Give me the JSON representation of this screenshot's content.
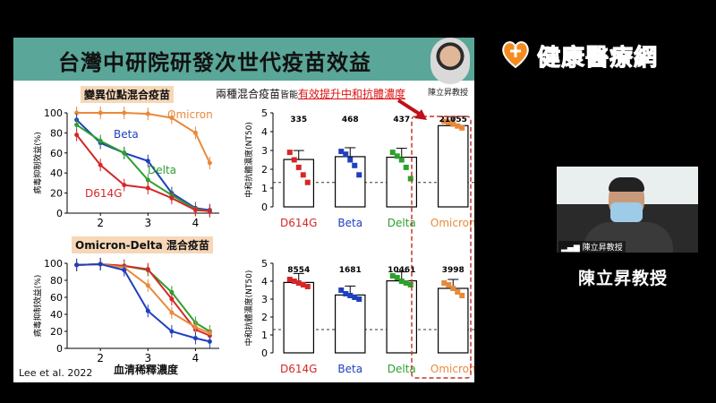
{
  "slide": {
    "title": "台灣中研院研發次世代疫苗效益",
    "portrait_label": "陳立昇教授",
    "caption_prefix": "兩種混合疫苗",
    "caption_mid": "皆能",
    "caption_highlight": "有效提升中和抗體濃度",
    "citation": "Lee et al. 2022",
    "xlabel_bottom": "血清稀釋濃度"
  },
  "colors": {
    "title_bg": "#5aa698",
    "d614g": "#d62728",
    "beta": "#1f3fbf",
    "delta": "#2ca02c",
    "omicron": "#e8893a",
    "box_dash": "#c0392b"
  },
  "brand": {
    "name": "健康醫療網",
    "icon": "heart-logo-icon"
  },
  "webcam": {
    "label": "陳立昇教授"
  },
  "speaker_name": "陳立昇教授",
  "chart_data": [
    {
      "type": "line",
      "title": "變異位點混合疫苗",
      "ylabel": "病毒抑制效益(%)",
      "xlabel": "",
      "x": [
        1.5,
        2,
        2.5,
        3,
        3.5,
        4,
        4.3
      ],
      "xticks": [
        2,
        3,
        4
      ],
      "yticks": [
        0,
        20,
        40,
        60,
        80,
        100
      ],
      "ylim": [
        0,
        100
      ],
      "xlim": [
        1.3,
        4.5
      ],
      "series": [
        {
          "name": "Omicron",
          "color": "#e8893a",
          "values": [
            100,
            100,
            100,
            99,
            95,
            80,
            50
          ]
        },
        {
          "name": "Beta",
          "color": "#1f3fbf",
          "values": [
            93,
            70,
            60,
            52,
            20,
            5,
            3
          ]
        },
        {
          "name": "Delta",
          "color": "#2ca02c",
          "values": [
            88,
            72,
            60,
            33,
            18,
            4,
            2
          ]
        },
        {
          "name": "D614G",
          "color": "#d62728",
          "values": [
            78,
            48,
            28,
            25,
            15,
            3,
            2
          ]
        }
      ]
    },
    {
      "type": "bar",
      "ylabel": "中和抗體濃度(NT50)",
      "categories": [
        "D614G",
        "Beta",
        "Delta",
        "Omicron"
      ],
      "values": [
        2.52,
        2.67,
        2.64,
        4.32
      ],
      "value_labels": [
        "335",
        "468",
        "437",
        "21055"
      ],
      "yticks": [
        0,
        1,
        2,
        3,
        4,
        5
      ],
      "ylim": [
        0,
        5
      ],
      "threshold": 1.3,
      "points": [
        [
          2.9,
          2.5,
          2.1,
          1.7,
          1.3
        ],
        [
          2.95,
          2.8,
          2.5,
          2.2,
          1.7
        ],
        [
          2.9,
          2.7,
          2.5,
          2.1,
          1.5
        ],
        [
          4.55,
          4.5,
          4.4,
          4.3,
          4.2
        ]
      ]
    },
    {
      "type": "line",
      "title": "Omicron-Delta 混合疫苗",
      "ylabel": "病毒抑制效益(%)",
      "xlabel": "血清稀釋濃度",
      "x": [
        1.5,
        2,
        2.5,
        3,
        3.5,
        4,
        4.3
      ],
      "xticks": [
        2,
        3,
        4
      ],
      "yticks": [
        0,
        20,
        40,
        60,
        80,
        100
      ],
      "ylim": [
        0,
        100
      ],
      "xlim": [
        1.3,
        4.5
      ],
      "series": [
        {
          "name": "Delta",
          "color": "#2ca02c",
          "values": [
            98,
            99,
            97,
            92,
            66,
            30,
            20
          ]
        },
        {
          "name": "D614G",
          "color": "#d62728",
          "values": [
            98,
            99,
            97,
            93,
            58,
            22,
            15
          ]
        },
        {
          "name": "Omicron",
          "color": "#e8893a",
          "values": [
            98,
            99,
            95,
            74,
            42,
            25,
            18
          ]
        },
        {
          "name": "Beta",
          "color": "#1f3fbf",
          "values": [
            98,
            99,
            92,
            44,
            20,
            12,
            8
          ]
        }
      ]
    },
    {
      "type": "bar",
      "ylabel": "中和抗體濃度(NT50)",
      "categories": [
        "D614G",
        "Beta",
        "Delta",
        "Omicron"
      ],
      "values": [
        3.93,
        3.23,
        4.02,
        3.6
      ],
      "value_labels": [
        "8554",
        "1681",
        "10461",
        "3998"
      ],
      "yticks": [
        0,
        1,
        2,
        3,
        4,
        5
      ],
      "ylim": [
        0,
        5
      ],
      "threshold": 1.3,
      "points": [
        [
          4.1,
          4.0,
          3.9,
          3.8,
          3.7
        ],
        [
          3.5,
          3.3,
          3.2,
          3.1,
          3.0
        ],
        [
          4.3,
          4.2,
          4.0,
          3.9,
          3.8
        ],
        [
          3.9,
          3.8,
          3.6,
          3.4,
          3.2
        ]
      ]
    }
  ]
}
